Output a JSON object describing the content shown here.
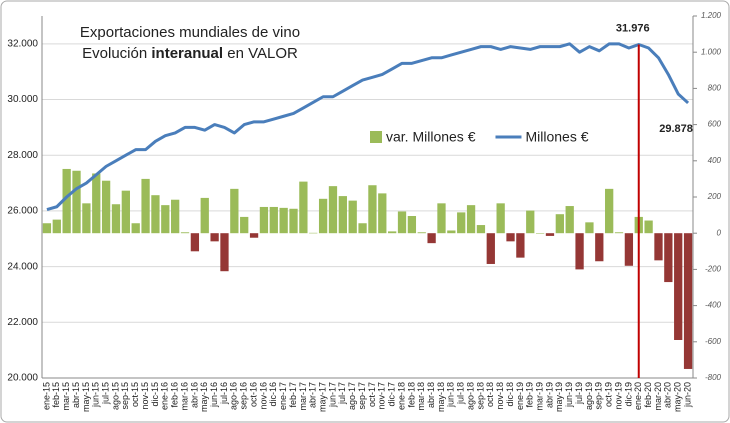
{
  "chart_data": {
    "type": "combo",
    "title": "Exportaciones mundiales de vino",
    "subtitle": [
      "Evolución ",
      "interanual",
      " en VALOR"
    ],
    "categories": [
      "ene-15",
      "feb-15",
      "mar-15",
      "abr-15",
      "may-15",
      "jun-15",
      "jul-15",
      "ago-15",
      "sep-15",
      "oct-15",
      "nov-15",
      "dic-15",
      "ene-16",
      "feb-16",
      "mar-16",
      "abr-16",
      "may-16",
      "jun-16",
      "jul-16",
      "ago-16",
      "sep-16",
      "oct-16",
      "nov-16",
      "dic-16",
      "ene-17",
      "feb-17",
      "mar-17",
      "abr-17",
      "may-17",
      "jun-17",
      "jul-17",
      "ago-17",
      "sep-17",
      "oct-17",
      "nov-17",
      "dic-17",
      "ene-18",
      "feb-18",
      "mar-18",
      "abr-18",
      "may-18",
      "jun-18",
      "jul-18",
      "ago-18",
      "sep-18",
      "oct-18",
      "nov-18",
      "dic-18",
      "ene-19",
      "feb-19",
      "mar-19",
      "abr-19",
      "may-19",
      "jun-19",
      "jul-19",
      "ago-19",
      "sep-19",
      "oct-19",
      "nov-19",
      "dic-19",
      "ene-20",
      "feb-20",
      "mar-20",
      "abr-20",
      "may-20",
      "jun-20"
    ],
    "series": [
      {
        "name": "var. Millones €",
        "type": "bar",
        "axis": "y2",
        "color": "#9bbb59",
        "negative_color": "#953735",
        "values": [
          55,
          75,
          355,
          345,
          165,
          330,
          290,
          160,
          235,
          55,
          300,
          210,
          155,
          185,
          5,
          -100,
          195,
          -45,
          -210,
          245,
          90,
          -25,
          145,
          145,
          140,
          135,
          285,
          2,
          190,
          260,
          205,
          180,
          55,
          265,
          220,
          10,
          120,
          95,
          5,
          -55,
          165,
          15,
          115,
          155,
          45,
          -170,
          165,
          -45,
          -135,
          125,
          0,
          -15,
          105,
          150,
          -200,
          60,
          -155,
          245,
          5,
          -180,
          90,
          70,
          -150,
          -270,
          -590,
          -750
        ]
      },
      {
        "name": "Millones €",
        "type": "line",
        "axis": "y",
        "color": "#4a7ebb",
        "values": [
          26050,
          26150,
          26500,
          26800,
          27000,
          27300,
          27600,
          27800,
          28000,
          28200,
          28200,
          28500,
          28700,
          28800,
          29000,
          29000,
          28900,
          29100,
          29000,
          28800,
          29100,
          29200,
          29200,
          29300,
          29400,
          29500,
          29700,
          29900,
          30100,
          30100,
          30300,
          30500,
          30700,
          30800,
          30900,
          31100,
          31300,
          31300,
          31400,
          31500,
          31500,
          31600,
          31700,
          31800,
          31900,
          31900,
          31800,
          31900,
          31850,
          31800,
          31900,
          31900,
          31900,
          32000,
          31700,
          31900,
          31750,
          32000,
          32000,
          31850,
          31976,
          31850,
          31500,
          30900,
          30200,
          29878
        ]
      }
    ],
    "annotations": [
      "31.976",
      "29.878"
    ],
    "ylim": [
      20000,
      33000
    ],
    "yticks": [
      {
        "value": 20000,
        "label": "20.000"
      },
      {
        "value": 22000,
        "label": "22.000"
      },
      {
        "value": 24000,
        "label": "24.000"
      },
      {
        "value": 26000,
        "label": "26.000"
      },
      {
        "value": 28000,
        "label": "28.000"
      },
      {
        "value": 30000,
        "label": "30.000"
      },
      {
        "value": 32000,
        "label": "32.000"
      }
    ],
    "y2lim": [
      -800,
      1200
    ],
    "y2ticks": [
      -800,
      -600,
      -400,
      -200,
      0,
      200,
      400,
      600,
      800,
      {
        "value": 1000,
        "label": "1.000"
      },
      {
        "value": 1200,
        "label": "1.200"
      }
    ],
    "grid": true
  }
}
